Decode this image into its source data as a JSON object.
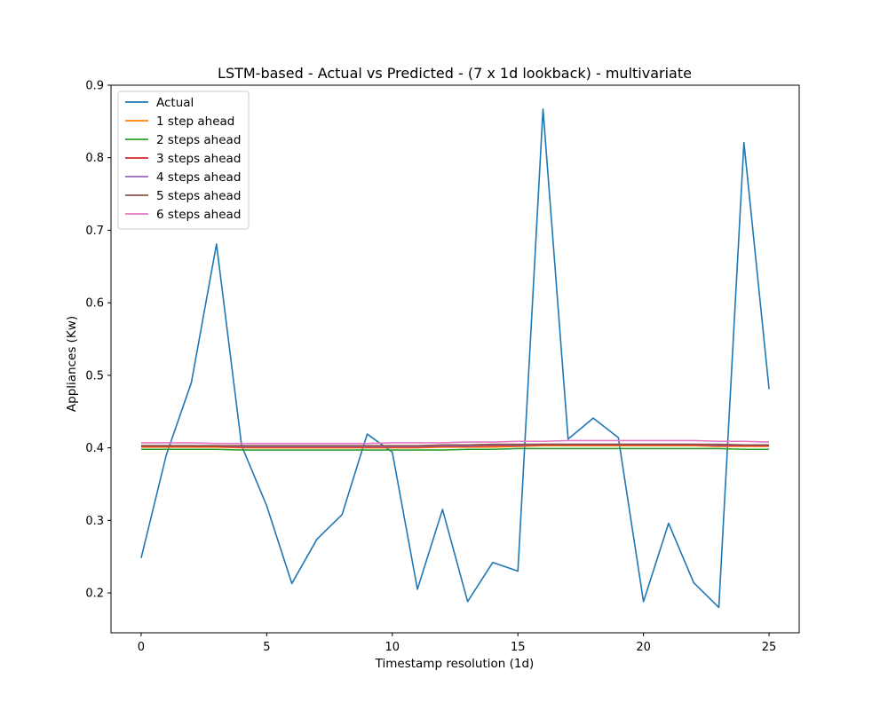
{
  "chart_data": {
    "type": "line",
    "title": "LSTM-based - Actual vs Predicted - (7 x 1d lookback) - multivariate",
    "xlabel": "Timestamp resolution (1d)",
    "ylabel": "Appliances (Kw)",
    "xlim": [
      -1.2,
      26.2
    ],
    "ylim": [
      0.145,
      0.9
    ],
    "xticks": [
      0,
      5,
      10,
      15,
      20,
      25
    ],
    "xtick_labels": [
      "0",
      "5",
      "10",
      "15",
      "20",
      "25"
    ],
    "yticks": [
      0.2,
      0.3,
      0.4,
      0.5,
      0.6,
      0.7,
      0.8,
      0.9
    ],
    "ytick_labels": [
      "0.2",
      "0.3",
      "0.4",
      "0.5",
      "0.6",
      "0.7",
      "0.8",
      "0.9"
    ],
    "grid": false,
    "legend": "upper-left",
    "x": [
      0,
      1,
      2,
      3,
      4,
      5,
      6,
      7,
      8,
      9,
      10,
      11,
      12,
      13,
      14,
      15,
      16,
      17,
      18,
      19,
      20,
      21,
      22,
      23,
      24,
      25
    ],
    "series": [
      {
        "name": "Actual",
        "color": "#1f77b4",
        "values": [
          0.248,
          0.39,
          0.49,
          0.681,
          0.403,
          0.32,
          0.213,
          0.274,
          0.308,
          0.419,
          0.394,
          0.205,
          0.315,
          0.188,
          0.242,
          0.23,
          0.867,
          0.412,
          0.441,
          0.414,
          0.188,
          0.296,
          0.214,
          0.18,
          0.821,
          0.481
        ]
      },
      {
        "name": "1 step ahead",
        "color": "#ff7f0e",
        "values": [
          0.401,
          0.401,
          0.401,
          0.401,
          0.4,
          0.4,
          0.4,
          0.4,
          0.4,
          0.4,
          0.4,
          0.4,
          0.401,
          0.401,
          0.401,
          0.402,
          0.403,
          0.403,
          0.403,
          0.403,
          0.403,
          0.403,
          0.403,
          0.402,
          0.402,
          0.402
        ]
      },
      {
        "name": "2 steps ahead",
        "color": "#2ca02c",
        "values": [
          0.398,
          0.398,
          0.398,
          0.398,
          0.397,
          0.397,
          0.397,
          0.397,
          0.397,
          0.397,
          0.397,
          0.397,
          0.397,
          0.398,
          0.398,
          0.399,
          0.399,
          0.399,
          0.399,
          0.399,
          0.399,
          0.399,
          0.399,
          0.399,
          0.398,
          0.398
        ]
      },
      {
        "name": "3 steps ahead",
        "color": "#d62728",
        "values": [
          0.402,
          0.402,
          0.402,
          0.402,
          0.401,
          0.401,
          0.401,
          0.401,
          0.401,
          0.401,
          0.401,
          0.401,
          0.402,
          0.402,
          0.403,
          0.403,
          0.404,
          0.404,
          0.404,
          0.404,
          0.404,
          0.404,
          0.404,
          0.403,
          0.403,
          0.403
        ]
      },
      {
        "name": "4 steps ahead",
        "color": "#9467bd",
        "values": [
          0.403,
          0.403,
          0.403,
          0.403,
          0.402,
          0.402,
          0.402,
          0.402,
          0.402,
          0.402,
          0.402,
          0.402,
          0.403,
          0.403,
          0.404,
          0.404,
          0.405,
          0.405,
          0.405,
          0.405,
          0.405,
          0.405,
          0.405,
          0.404,
          0.404,
          0.404
        ]
      },
      {
        "name": "5 steps ahead",
        "color": "#8c564b",
        "values": [
          0.403,
          0.403,
          0.403,
          0.403,
          0.403,
          0.403,
          0.403,
          0.403,
          0.403,
          0.403,
          0.403,
          0.403,
          0.404,
          0.404,
          0.405,
          0.405,
          0.405,
          0.405,
          0.405,
          0.405,
          0.405,
          0.405,
          0.405,
          0.405,
          0.404,
          0.404
        ]
      },
      {
        "name": "6 steps ahead",
        "color": "#e377c2",
        "values": [
          0.407,
          0.407,
          0.407,
          0.406,
          0.406,
          0.406,
          0.406,
          0.406,
          0.406,
          0.406,
          0.407,
          0.407,
          0.407,
          0.408,
          0.408,
          0.409,
          0.409,
          0.41,
          0.41,
          0.41,
          0.41,
          0.41,
          0.41,
          0.409,
          0.409,
          0.408
        ]
      }
    ]
  }
}
